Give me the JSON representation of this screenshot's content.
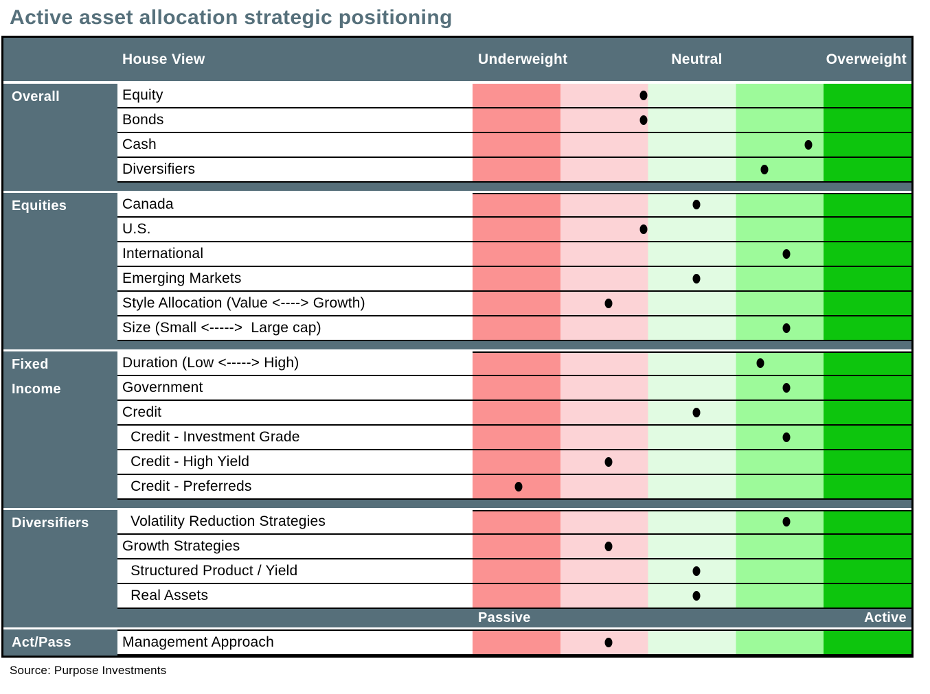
{
  "title": "Active asset allocation strategic positioning",
  "source": "Source: Purpose Investments",
  "header": {
    "house_view": "House View",
    "underweight": "Underweight",
    "neutral": "Neutral",
    "overweight": "Overweight"
  },
  "scale_bar": {
    "left": "Passive",
    "right": "Active"
  },
  "colors": {
    "slate": "#566F7A",
    "title": "#56707B",
    "strong_underweight": "#FB9292",
    "underweight": "#FCD3D6",
    "neutral": "#E1FBE2",
    "overweight": "#9DFA9A",
    "strong_overweight": "#0DC50D",
    "dot": "#000000"
  },
  "chart_data": {
    "type": "dot-position-table",
    "title": "Active asset allocation strategic positioning",
    "scale": {
      "min_label": "Underweight",
      "mid_label": "Neutral",
      "max_label": "Overweight",
      "bands": 5,
      "range_pct": [
        0,
        100
      ]
    },
    "groups": [
      {
        "label": "Overall",
        "rows": [
          {
            "label": "Equity",
            "position_pct": 39
          },
          {
            "label": "Bonds",
            "position_pct": 39
          },
          {
            "label": "Cash",
            "position_pct": 76.5
          },
          {
            "label": "Diversifiers",
            "position_pct": 66.5
          }
        ]
      },
      {
        "label": "Equities",
        "rows": [
          {
            "label": "Canada",
            "position_pct": 51
          },
          {
            "label": "U.S.",
            "position_pct": 39
          },
          {
            "label": "International",
            "position_pct": 71.5
          },
          {
            "label": "Emerging Markets",
            "position_pct": 51
          },
          {
            "label": "Style Allocation (Value <----> Growth)",
            "position_pct": 31
          },
          {
            "label": "Size (Small <----->  Large cap)",
            "position_pct": 71.5
          }
        ]
      },
      {
        "label": "Fixed Income",
        "rows": [
          {
            "label": "Duration (Low <-----> High)",
            "position_pct": 65.5
          },
          {
            "label": "Government",
            "position_pct": 71.5
          },
          {
            "label": "Credit",
            "position_pct": 51
          },
          {
            "label": "  Credit - Investment Grade",
            "position_pct": 71.5
          },
          {
            "label": "  Credit - High Yield",
            "position_pct": 31
          },
          {
            "label": "  Credit - Preferreds",
            "position_pct": 10.5
          }
        ]
      },
      {
        "label": "Diversifiers",
        "rows": [
          {
            "label": "  Volatility Reduction Strategies",
            "position_pct": 71.5
          },
          {
            "label": "Growth Strategies",
            "position_pct": 31
          },
          {
            "label": "  Structured Product / Yield",
            "position_pct": 51
          },
          {
            "label": "  Real Assets",
            "position_pct": 51
          }
        ]
      },
      {
        "label": "Act/Pass",
        "rows": [
          {
            "label": "Management Approach",
            "position_pct": 31
          }
        ]
      }
    ]
  }
}
